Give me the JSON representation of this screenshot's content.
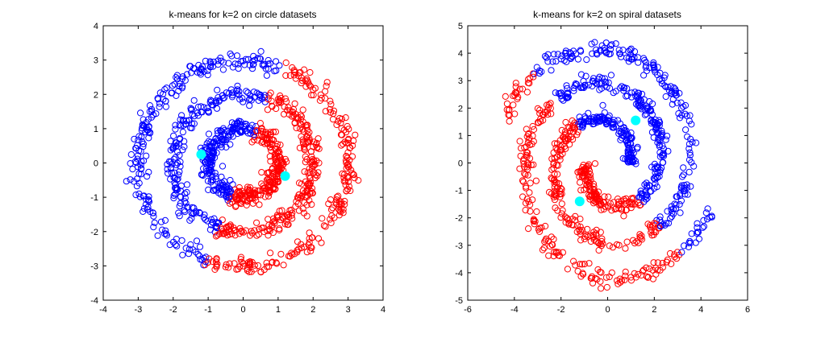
{
  "chart_data": [
    {
      "type": "scatter",
      "title": "k-means for k=2 on circle datasets",
      "xlabel": "",
      "ylabel": "",
      "xlim": [
        -4,
        4
      ],
      "ylim": [
        -4,
        4
      ],
      "xticks": [
        -4,
        -3,
        -2,
        -1,
        0,
        1,
        2,
        3,
        4
      ],
      "yticks": [
        -4,
        -3,
        -2,
        -1,
        0,
        1,
        2,
        3,
        4
      ],
      "grid": false,
      "rings": [
        {
          "radius": 1.0,
          "points": 420
        },
        {
          "radius": 2.0,
          "points": 420
        },
        {
          "radius": 3.0,
          "points": 420
        }
      ],
      "cluster_split": {
        "line_through_origin_direction": [
          -0.35,
          -0.94
        ]
      },
      "series": [
        {
          "color": "#ff0000",
          "marker": "open-circle"
        },
        {
          "color": "#0000ff",
          "marker": "open-circle"
        }
      ],
      "centroids": [
        {
          "x": -1.2,
          "y": 0.25,
          "color": "#00ffff"
        },
        {
          "x": 1.2,
          "y": -0.38,
          "color": "#00ffff"
        }
      ]
    },
    {
      "type": "scatter",
      "title": "k-means for k=2 on spiral datasets",
      "xlabel": "",
      "ylabel": "",
      "xlim": [
        -6,
        6
      ],
      "ylim": [
        -5,
        5
      ],
      "xticks": [
        -6,
        -4,
        -2,
        0,
        2,
        4,
        6
      ],
      "yticks": [
        -5,
        -4,
        -3,
        -2,
        -1,
        0,
        1,
        2,
        3,
        4,
        5
      ],
      "grid": false,
      "arms": [
        {
          "theta_start_deg": 0,
          "theta_end_deg": 520,
          "r_start": 0.9,
          "r_end": 4.7,
          "points": 520
        },
        {
          "theta_start_deg": 180,
          "theta_end_deg": 700,
          "r_start": 0.9,
          "r_end": 4.7,
          "points": 520
        }
      ],
      "cluster_split": {
        "line_through_origin_direction": [
          -0.7,
          0.72
        ]
      },
      "series": [
        {
          "color": "#ff0000",
          "marker": "open-circle"
        },
        {
          "color": "#0000ff",
          "marker": "open-circle"
        }
      ],
      "centroids": [
        {
          "x": 1.2,
          "y": 1.55,
          "color": "#00ffff"
        },
        {
          "x": -1.2,
          "y": -1.4,
          "color": "#00ffff"
        }
      ]
    }
  ]
}
